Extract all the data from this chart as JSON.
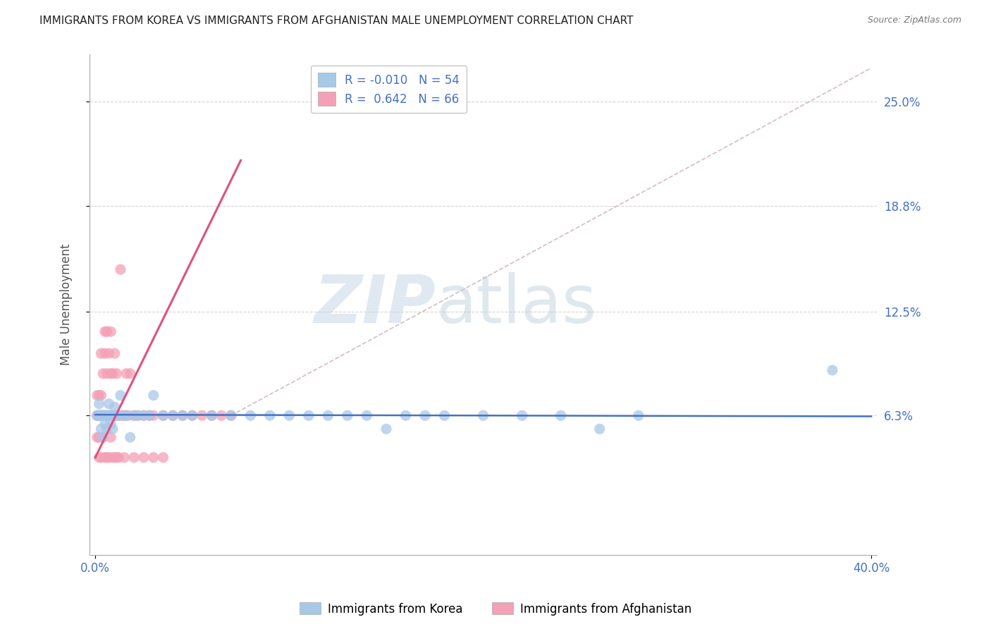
{
  "title": "IMMIGRANTS FROM KOREA VS IMMIGRANTS FROM AFGHANISTAN MALE UNEMPLOYMENT CORRELATION CHART",
  "source": "Source: ZipAtlas.com",
  "ylabel": "Male Unemployment",
  "watermark_zip": "ZIP",
  "watermark_atlas": "atlas",
  "korea_R": -0.01,
  "korea_N": 54,
  "afghanistan_R": 0.642,
  "afghanistan_N": 66,
  "xlim": [
    -0.003,
    0.403
  ],
  "ylim": [
    -0.02,
    0.278
  ],
  "yticks": [
    0.063,
    0.125,
    0.188,
    0.25
  ],
  "ytick_labels": [
    "6.3%",
    "12.5%",
    "18.8%",
    "25.0%"
  ],
  "xtick_left": 0.0,
  "xtick_right": 0.4,
  "xtick_left_label": "0.0%",
  "xtick_right_label": "40.0%",
  "korea_color": "#a8c8e8",
  "afghanistan_color": "#f4a0b5",
  "korea_line_color": "#4472c4",
  "afghanistan_line_color": "#e05080",
  "legend_korea": "Immigrants from Korea",
  "legend_afghanistan": "Immigrants from Afghanistan",
  "title_color": "#222222",
  "axis_label_color": "#555555",
  "tick_color": "#4472c4",
  "grid_color": "#d0d0d0",
  "korea_x": [
    0.001,
    0.002,
    0.002,
    0.003,
    0.003,
    0.003,
    0.004,
    0.004,
    0.005,
    0.005,
    0.005,
    0.006,
    0.006,
    0.007,
    0.007,
    0.008,
    0.008,
    0.009,
    0.01,
    0.01,
    0.011,
    0.012,
    0.013,
    0.015,
    0.016,
    0.018,
    0.02,
    0.022,
    0.025,
    0.028,
    0.03,
    0.035,
    0.04,
    0.045,
    0.05,
    0.06,
    0.07,
    0.08,
    0.09,
    0.1,
    0.11,
    0.12,
    0.14,
    0.16,
    0.18,
    0.2,
    0.22,
    0.24,
    0.26,
    0.28,
    0.13,
    0.15,
    0.38,
    0.17
  ],
  "korea_y": [
    0.063,
    0.063,
    0.07,
    0.063,
    0.055,
    0.063,
    0.063,
    0.05,
    0.063,
    0.058,
    0.063,
    0.063,
    0.055,
    0.063,
    0.07,
    0.063,
    0.058,
    0.055,
    0.063,
    0.068,
    0.063,
    0.063,
    0.075,
    0.063,
    0.063,
    0.05,
    0.063,
    0.063,
    0.063,
    0.063,
    0.075,
    0.063,
    0.063,
    0.063,
    0.063,
    0.063,
    0.063,
    0.063,
    0.063,
    0.063,
    0.063,
    0.063,
    0.063,
    0.063,
    0.063,
    0.063,
    0.063,
    0.063,
    0.055,
    0.063,
    0.063,
    0.055,
    0.09,
    0.063
  ],
  "afghanistan_x": [
    0.001,
    0.001,
    0.001,
    0.001,
    0.002,
    0.002,
    0.002,
    0.002,
    0.003,
    0.003,
    0.003,
    0.004,
    0.004,
    0.004,
    0.005,
    0.005,
    0.005,
    0.006,
    0.006,
    0.006,
    0.007,
    0.007,
    0.008,
    0.008,
    0.008,
    0.009,
    0.009,
    0.01,
    0.01,
    0.011,
    0.012,
    0.013,
    0.014,
    0.015,
    0.016,
    0.017,
    0.018,
    0.02,
    0.022,
    0.025,
    0.028,
    0.03,
    0.035,
    0.04,
    0.045,
    0.05,
    0.055,
    0.06,
    0.065,
    0.07,
    0.002,
    0.003,
    0.004,
    0.005,
    0.006,
    0.007,
    0.008,
    0.009,
    0.01,
    0.011,
    0.012,
    0.015,
    0.02,
    0.025,
    0.03,
    0.035
  ],
  "afghanistan_y": [
    0.063,
    0.05,
    0.063,
    0.075,
    0.063,
    0.075,
    0.05,
    0.063,
    0.063,
    0.075,
    0.1,
    0.063,
    0.088,
    0.063,
    0.113,
    0.1,
    0.063,
    0.063,
    0.088,
    0.113,
    0.063,
    0.1,
    0.063,
    0.088,
    0.113,
    0.063,
    0.088,
    0.063,
    0.1,
    0.088,
    0.063,
    0.15,
    0.063,
    0.063,
    0.088,
    0.063,
    0.088,
    0.063,
    0.063,
    0.063,
    0.063,
    0.063,
    0.063,
    0.063,
    0.063,
    0.063,
    0.063,
    0.063,
    0.063,
    0.063,
    0.038,
    0.038,
    0.05,
    0.038,
    0.038,
    0.038,
    0.05,
    0.038,
    0.038,
    0.038,
    0.038,
    0.038,
    0.038,
    0.038,
    0.038,
    0.038
  ],
  "korea_trend_x": [
    0.0,
    0.4
  ],
  "korea_trend_y": [
    0.0635,
    0.0625
  ],
  "afghanistan_trend_x": [
    0.0,
    0.075
  ],
  "afghanistan_trend_y": [
    0.038,
    0.215
  ],
  "diag_line_x": [
    0.07,
    0.4
  ],
  "diag_line_y": [
    0.063,
    0.27
  ]
}
